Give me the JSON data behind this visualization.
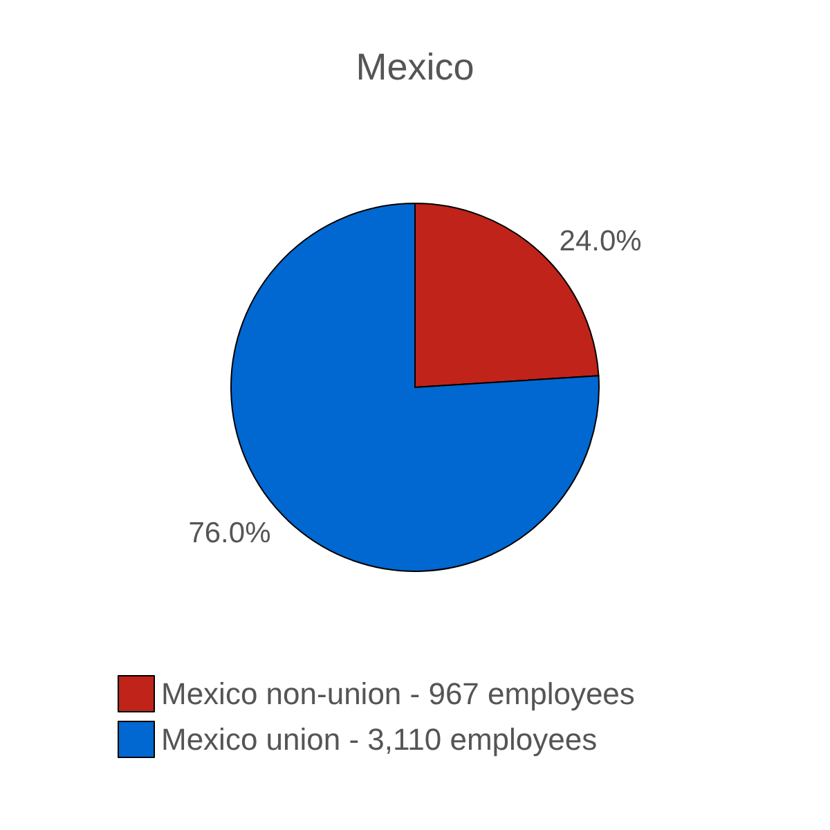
{
  "chart_data": {
    "type": "pie",
    "title": "Mexico",
    "categories": [
      "Mexico non-union - 967 employees",
      "Mexico union - 3,110 employees"
    ],
    "values": [
      24,
      76
    ],
    "value_labels": [
      "24.0%",
      "76.0%"
    ],
    "colors": [
      "#c0231a",
      "#0068d0"
    ],
    "legend": "bottom"
  }
}
